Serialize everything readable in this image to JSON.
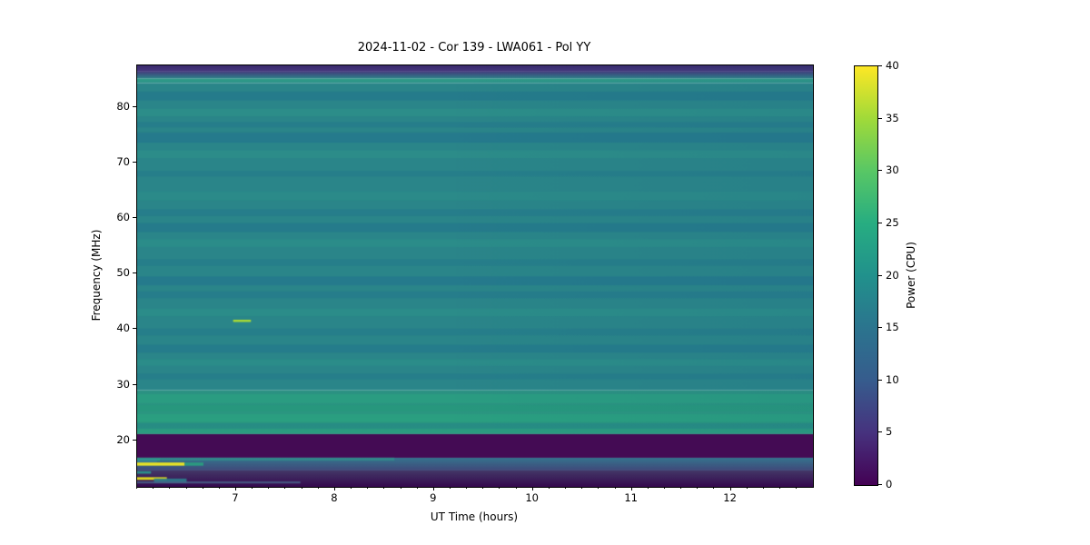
{
  "title": "2024-11-02 - Cor 139 - LWA061 - Pol YY",
  "chart_data": {
    "type": "heatmap",
    "subtype": "radio-dynamic-spectrum",
    "title": "2024-11-02 - Cor 139 - LWA061 - Pol YY",
    "xlabel": "UT Time (hours)",
    "ylabel": "Frequency (MHz)",
    "x_range": [
      6.0,
      12.83
    ],
    "y_range": [
      11.6,
      87.5
    ],
    "x_ticks": [
      7,
      8,
      9,
      10,
      11,
      12
    ],
    "x_minor_step": 0.16667,
    "y_ticks": [
      20,
      30,
      40,
      50,
      60,
      70,
      80
    ],
    "grid": false,
    "colorbar": {
      "label": "Power (CPU)",
      "ticks": [
        0,
        5,
        10,
        15,
        20,
        25,
        30,
        35,
        40
      ],
      "range": [
        0,
        40
      ],
      "colormap": "viridis",
      "stops": [
        {
          "pos": 0.0,
          "color": "#440154"
        },
        {
          "pos": 0.125,
          "color": "#46327e"
        },
        {
          "pos": 0.25,
          "color": "#365c8d"
        },
        {
          "pos": 0.375,
          "color": "#2b748e"
        },
        {
          "pos": 0.5,
          "color": "#21918c"
        },
        {
          "pos": 0.625,
          "color": "#27ad81"
        },
        {
          "pos": 0.75,
          "color": "#58c765"
        },
        {
          "pos": 0.875,
          "color": "#a0da39"
        },
        {
          "pos": 1.0,
          "color": "#fde725"
        }
      ]
    },
    "bands": [
      {
        "f0": 87.5,
        "f1": 86.5,
        "c0": "#39296d",
        "c1": "#45377c",
        "note": "dark indigo top band ~2-6 CPU"
      },
      {
        "f0": 86.5,
        "f1": 85.1,
        "c0": "#45377c",
        "c1": "#2c8489",
        "note": "transition"
      },
      {
        "f0": 85.1,
        "f1": 84.3,
        "c0": "#2f9c86",
        "c1": "#2d928a",
        "note": "bright teal-green row ~85 MHz"
      },
      {
        "f0": 84.3,
        "f1": 29.0,
        "c0": "#2a8589",
        "c1": "#2a8589",
        "note": "main teal body ~20 CPU"
      },
      {
        "f0": 29.0,
        "f1": 21.1,
        "c0": "#2b9183",
        "c1": "#2b9c7f",
        "note": "greener band ~22 CPU"
      },
      {
        "f0": 21.1,
        "f1": 16.84,
        "c0": "#440b54",
        "c1": "#440b54",
        "note": "zero-power dark band 17-21 MHz"
      },
      {
        "f0": 16.84,
        "f1": 14.55,
        "c0": "#35748e",
        "c1": "#40497a",
        "note": "blue band ~13 CPU"
      },
      {
        "f0": 14.55,
        "f1": 11.6,
        "c0": "#433767",
        "c1": "#35094e",
        "note": "bottom purple fade"
      }
    ],
    "stripes": [
      {
        "f": 82.0,
        "df": 0.8,
        "color": "#1f6f8f",
        "alpha": 0.45
      },
      {
        "f": 79.0,
        "df": 0.7,
        "color": "#2e958a",
        "alpha": 0.5
      },
      {
        "f": 76.8,
        "df": 0.5,
        "color": "#1f6f8f",
        "alpha": 0.35
      },
      {
        "f": 74.5,
        "df": 0.9,
        "color": "#1f6f8f",
        "alpha": 0.5
      },
      {
        "f": 71.5,
        "df": 0.7,
        "color": "#2e958a",
        "alpha": 0.45
      },
      {
        "f": 68.0,
        "df": 0.5,
        "color": "#1f6f8f",
        "alpha": 0.3
      },
      {
        "f": 64.0,
        "df": 0.8,
        "color": "#2e958a",
        "alpha": 0.35
      },
      {
        "f": 61.0,
        "df": 0.6,
        "color": "#1f6f8f",
        "alpha": 0.35
      },
      {
        "f": 58.3,
        "df": 0.8,
        "color": "#1f6f8f",
        "alpha": 0.45
      },
      {
        "f": 55.5,
        "df": 0.7,
        "color": "#2e958a",
        "alpha": 0.4
      },
      {
        "f": 52.0,
        "df": 0.6,
        "color": "#1f6f8f",
        "alpha": 0.3
      },
      {
        "f": 48.7,
        "df": 0.8,
        "color": "#1f6f8f",
        "alpha": 0.5
      },
      {
        "f": 46.2,
        "df": 0.6,
        "color": "#1f6f8f",
        "alpha": 0.35
      },
      {
        "f": 43.0,
        "df": 0.7,
        "color": "#2e958a",
        "alpha": 0.4
      },
      {
        "f": 39.5,
        "df": 0.6,
        "color": "#1f6f8f",
        "alpha": 0.3
      },
      {
        "f": 36.5,
        "df": 0.7,
        "color": "#1f6f8f",
        "alpha": 0.4
      },
      {
        "f": 34.0,
        "df": 0.6,
        "color": "#2e958a",
        "alpha": 0.4
      },
      {
        "f": 31.5,
        "df": 0.5,
        "color": "#1f6f8f",
        "alpha": 0.3
      },
      {
        "f": 27.5,
        "df": 0.8,
        "color": "#2aa57f",
        "alpha": 0.5
      },
      {
        "f": 25.8,
        "df": 0.6,
        "color": "#239a7a",
        "alpha": 0.5
      },
      {
        "f": 24.0,
        "df": 0.7,
        "color": "#2aa57f",
        "alpha": 0.5
      },
      {
        "f": 22.6,
        "df": 0.5,
        "color": "#1f6f8f",
        "alpha": 0.3
      }
    ],
    "features": [
      {
        "t0": 6.97,
        "t1": 7.15,
        "f": 41.5,
        "df": 0.2,
        "color": "#a9d935",
        "alpha": 1,
        "note": "yellow-green burst dash ~42 MHz near 7.05 h"
      },
      {
        "t0": 6.0,
        "t1": 6.23,
        "f": 16.5,
        "df": 0.22,
        "color": "#2b9a80",
        "alpha": 1
      },
      {
        "t0": 6.0,
        "t1": 8.6,
        "f": 16.6,
        "df": 0.28,
        "color": "#2fa18a",
        "alpha": 0.45
      },
      {
        "t0": 6.0,
        "t1": 6.2,
        "f": 16.1,
        "df": 0.5,
        "color": "#3a85a0",
        "alpha": 0.5
      },
      {
        "t0": 6.0,
        "t1": 6.48,
        "f": 15.7,
        "df": 0.28,
        "color": "#e8e426",
        "alpha": 1,
        "note": "bright RFI line"
      },
      {
        "t0": 6.48,
        "t1": 6.67,
        "f": 15.7,
        "df": 0.28,
        "color": "#2b9a80",
        "alpha": 1
      },
      {
        "t0": 6.0,
        "t1": 6.14,
        "f": 14.2,
        "df": 0.22,
        "color": "#2b8f8a",
        "alpha": 1
      },
      {
        "t0": 6.0,
        "t1": 6.3,
        "f": 13.1,
        "df": 0.24,
        "color": "#ddd71f",
        "alpha": 1,
        "note": "bright RFI line"
      },
      {
        "t0": 6.17,
        "t1": 6.5,
        "f": 12.7,
        "df": 0.4,
        "color": "#2e7d8c",
        "alpha": 0.9
      },
      {
        "t0": 6.0,
        "t1": 7.65,
        "f": 12.4,
        "df": 0.18,
        "color": "#49648a",
        "alpha": 0.8
      }
    ],
    "right_tint": {
      "color": "26,90,130",
      "max_alpha": 0.09
    }
  }
}
